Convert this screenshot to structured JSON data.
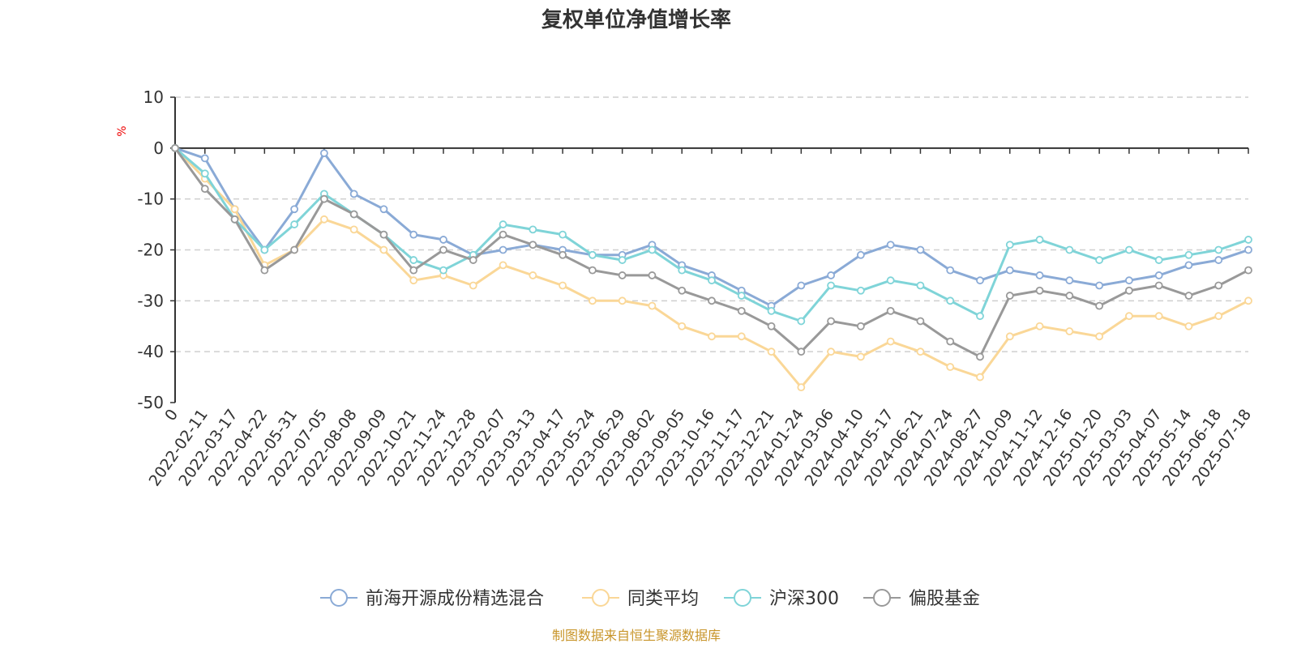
{
  "chart_data": {
    "type": "line",
    "title": "复权单位净值增长率",
    "y_unit": "%",
    "ylim": [
      -50,
      10
    ],
    "y_ticks": [
      10,
      0,
      -10,
      -20,
      -30,
      -40,
      -50
    ],
    "grid": true,
    "legend_position": "bottom",
    "source": "制图数据来自恒生聚源数据库",
    "x_labels": [
      "0",
      "2022-02-11",
      "2022-03-17",
      "2022-04-22",
      "2022-05-31",
      "2022-07-05",
      "2022-08-08",
      "2022-09-09",
      "2022-10-21",
      "2022-11-24",
      "2022-12-28",
      "2023-02-07",
      "2023-03-13",
      "2023-04-17",
      "2023-05-24",
      "2023-06-29",
      "2023-08-02",
      "2023-09-05",
      "2023-10-16",
      "2023-11-17",
      "2023-12-21",
      "2024-01-24",
      "2024-03-06",
      "2024-04-10",
      "2024-05-17",
      "2024-06-21",
      "2024-07-24",
      "2024-08-27",
      "2024-10-09",
      "2024-11-12",
      "2024-12-16",
      "2025-01-20",
      "2025-03-03",
      "2025-04-07",
      "2025-05-14",
      "2025-06-18",
      "2025-07-18"
    ],
    "series": [
      {
        "name": "前海开源成份精选混合",
        "color": "#8aaad6",
        "values": [
          0,
          -2,
          -12,
          -20,
          -12,
          -1,
          -9,
          -12,
          -17,
          -18,
          -21,
          -20,
          -19,
          -20,
          -21,
          -21,
          -19,
          -23,
          -25,
          -28,
          -31,
          -27,
          -25,
          -21,
          -19,
          -20,
          -24,
          -26,
          -24,
          -25,
          -26,
          -27,
          -26,
          -25,
          -23,
          -22,
          -20
        ]
      },
      {
        "name": "同类平均",
        "color": "#fad797",
        "values": [
          0,
          -6,
          -12,
          -23,
          -20,
          -14,
          -16,
          -20,
          -26,
          -25,
          -27,
          -23,
          -25,
          -27,
          -30,
          -30,
          -31,
          -35,
          -37,
          -37,
          -40,
          -47,
          -40,
          -41,
          -38,
          -40,
          -43,
          -45,
          -37,
          -35,
          -36,
          -37,
          -33,
          -33,
          -35,
          -33,
          -30
        ]
      },
      {
        "name": "沪深300",
        "color": "#7fd4d8",
        "values": [
          0,
          -5,
          -14,
          -20,
          -15,
          -9,
          -13,
          -17,
          -22,
          -24,
          -21,
          -15,
          -16,
          -17,
          -21,
          -22,
          -20,
          -24,
          -26,
          -29,
          -32,
          -34,
          -27,
          -28,
          -26,
          -27,
          -30,
          -33,
          -19,
          -18,
          -20,
          -22,
          -20,
          -22,
          -21,
          -20,
          -18
        ]
      },
      {
        "name": "偏股基金",
        "color": "#999999",
        "values": [
          0,
          -8,
          -14,
          -24,
          -20,
          -10,
          -13,
          -17,
          -24,
          -20,
          -22,
          -17,
          -19,
          -21,
          -24,
          -25,
          -25,
          -28,
          -30,
          -32,
          -35,
          -40,
          -34,
          -35,
          -32,
          -34,
          -38,
          -41,
          -29,
          -28,
          -29,
          -31,
          -28,
          -27,
          -29,
          -27,
          -24
        ]
      }
    ]
  }
}
